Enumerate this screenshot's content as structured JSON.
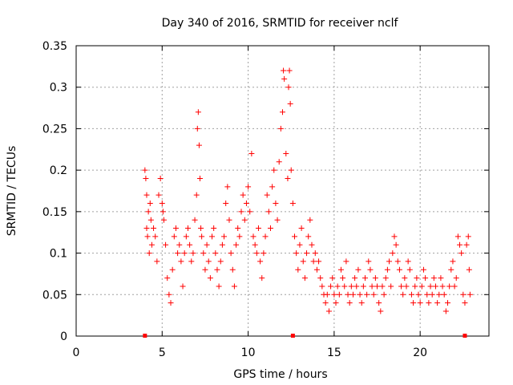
{
  "chart_data": {
    "type": "scatter",
    "title": "Day 340 of 2016, SRMTID for receiver nclf",
    "xlabel": "GPS time / hours",
    "ylabel": "SRMTID / TECUs",
    "xlim": [
      0,
      24
    ],
    "ylim": [
      0,
      0.35
    ],
    "xticks": [
      0,
      5,
      10,
      15,
      20
    ],
    "yticks": [
      0,
      0.05,
      0.1,
      0.15,
      0.2,
      0.25,
      0.3,
      0.35
    ],
    "xtick_labels": [
      "0",
      "5",
      "10",
      "15",
      "20"
    ],
    "ytick_labels": [
      "0",
      "0.05",
      "0.1",
      "0.15",
      "0.2",
      "0.25",
      "0.3",
      "0.35"
    ],
    "grid": true,
    "marker": "+",
    "color": "#ff0000",
    "series": [
      {
        "name": "SRMTID",
        "points": [
          [
            4.0,
            0.2
          ],
          [
            4.05,
            0.19
          ],
          [
            4.1,
            0.17
          ],
          [
            4.1,
            0.13
          ],
          [
            4.15,
            0.12
          ],
          [
            4.2,
            0.15
          ],
          [
            4.25,
            0.1
          ],
          [
            4.3,
            0.16
          ],
          [
            4.35,
            0.14
          ],
          [
            4.4,
            0.11
          ],
          [
            4.5,
            0.13
          ],
          [
            4.6,
            0.12
          ],
          [
            4.7,
            0.09
          ],
          [
            4.8,
            0.17
          ],
          [
            4.9,
            0.19
          ],
          [
            5.0,
            0.16
          ],
          [
            5.05,
            0.15
          ],
          [
            5.1,
            0.14
          ],
          [
            5.2,
            0.11
          ],
          [
            5.3,
            0.07
          ],
          [
            5.4,
            0.05
          ],
          [
            5.5,
            0.04
          ],
          [
            5.6,
            0.08
          ],
          [
            5.7,
            0.12
          ],
          [
            5.8,
            0.13
          ],
          [
            5.9,
            0.1
          ],
          [
            6.0,
            0.11
          ],
          [
            6.1,
            0.09
          ],
          [
            6.2,
            0.06
          ],
          [
            6.3,
            0.1
          ],
          [
            6.4,
            0.12
          ],
          [
            6.5,
            0.13
          ],
          [
            6.6,
            0.11
          ],
          [
            6.7,
            0.09
          ],
          [
            6.8,
            0.1
          ],
          [
            6.9,
            0.14
          ],
          [
            7.0,
            0.17
          ],
          [
            7.05,
            0.25
          ],
          [
            7.1,
            0.27
          ],
          [
            7.15,
            0.23
          ],
          [
            7.2,
            0.19
          ],
          [
            7.25,
            0.13
          ],
          [
            7.3,
            0.12
          ],
          [
            7.4,
            0.1
          ],
          [
            7.5,
            0.08
          ],
          [
            7.6,
            0.11
          ],
          [
            7.7,
            0.09
          ],
          [
            7.8,
            0.07
          ],
          [
            7.9,
            0.12
          ],
          [
            8.0,
            0.13
          ],
          [
            8.1,
            0.1
          ],
          [
            8.2,
            0.08
          ],
          [
            8.3,
            0.06
          ],
          [
            8.4,
            0.09
          ],
          [
            8.5,
            0.11
          ],
          [
            8.6,
            0.12
          ],
          [
            8.7,
            0.16
          ],
          [
            8.8,
            0.18
          ],
          [
            8.9,
            0.14
          ],
          [
            9.0,
            0.1
          ],
          [
            9.1,
            0.08
          ],
          [
            9.2,
            0.06
          ],
          [
            9.3,
            0.11
          ],
          [
            9.4,
            0.13
          ],
          [
            9.5,
            0.12
          ],
          [
            9.6,
            0.15
          ],
          [
            9.7,
            0.17
          ],
          [
            9.8,
            0.14
          ],
          [
            9.9,
            0.16
          ],
          [
            10.0,
            0.18
          ],
          [
            10.1,
            0.15
          ],
          [
            10.2,
            0.22
          ],
          [
            10.3,
            0.12
          ],
          [
            10.4,
            0.11
          ],
          [
            10.5,
            0.1
          ],
          [
            10.6,
            0.13
          ],
          [
            10.7,
            0.09
          ],
          [
            10.8,
            0.07
          ],
          [
            10.9,
            0.1
          ],
          [
            11.0,
            0.12
          ],
          [
            11.1,
            0.17
          ],
          [
            11.2,
            0.15
          ],
          [
            11.3,
            0.13
          ],
          [
            11.4,
            0.18
          ],
          [
            11.5,
            0.2
          ],
          [
            11.6,
            0.16
          ],
          [
            11.7,
            0.14
          ],
          [
            11.8,
            0.21
          ],
          [
            11.9,
            0.25
          ],
          [
            12.0,
            0.27
          ],
          [
            12.05,
            0.32
          ],
          [
            12.1,
            0.31
          ],
          [
            12.2,
            0.22
          ],
          [
            12.3,
            0.19
          ],
          [
            12.35,
            0.3
          ],
          [
            12.4,
            0.32
          ],
          [
            12.45,
            0.28
          ],
          [
            12.5,
            0.2
          ],
          [
            12.6,
            0.16
          ],
          [
            12.7,
            0.12
          ],
          [
            12.8,
            0.1
          ],
          [
            12.9,
            0.08
          ],
          [
            13.0,
            0.11
          ],
          [
            13.1,
            0.13
          ],
          [
            13.2,
            0.09
          ],
          [
            13.3,
            0.07
          ],
          [
            13.4,
            0.1
          ],
          [
            13.5,
            0.12
          ],
          [
            13.6,
            0.14
          ],
          [
            13.7,
            0.11
          ],
          [
            13.8,
            0.09
          ],
          [
            13.9,
            0.1
          ],
          [
            14.0,
            0.08
          ],
          [
            14.1,
            0.09
          ],
          [
            14.2,
            0.07
          ],
          [
            14.3,
            0.06
          ],
          [
            14.4,
            0.05
          ],
          [
            14.5,
            0.04
          ],
          [
            14.6,
            0.05
          ],
          [
            14.7,
            0.03
          ],
          [
            14.8,
            0.06
          ],
          [
            14.9,
            0.07
          ],
          [
            15.0,
            0.05
          ],
          [
            15.1,
            0.04
          ],
          [
            15.2,
            0.06
          ],
          [
            15.3,
            0.05
          ],
          [
            15.4,
            0.08
          ],
          [
            15.5,
            0.07
          ],
          [
            15.6,
            0.06
          ],
          [
            15.7,
            0.09
          ],
          [
            15.8,
            0.05
          ],
          [
            15.9,
            0.04
          ],
          [
            16.0,
            0.06
          ],
          [
            16.1,
            0.05
          ],
          [
            16.2,
            0.07
          ],
          [
            16.3,
            0.06
          ],
          [
            16.4,
            0.08
          ],
          [
            16.5,
            0.05
          ],
          [
            16.6,
            0.04
          ],
          [
            16.7,
            0.06
          ],
          [
            16.8,
            0.07
          ],
          [
            16.9,
            0.05
          ],
          [
            17.0,
            0.09
          ],
          [
            17.1,
            0.08
          ],
          [
            17.2,
            0.06
          ],
          [
            17.3,
            0.05
          ],
          [
            17.4,
            0.07
          ],
          [
            17.5,
            0.06
          ],
          [
            17.6,
            0.04
          ],
          [
            17.7,
            0.03
          ],
          [
            17.8,
            0.06
          ],
          [
            17.9,
            0.05
          ],
          [
            18.0,
            0.07
          ],
          [
            18.1,
            0.08
          ],
          [
            18.2,
            0.09
          ],
          [
            18.3,
            0.06
          ],
          [
            18.4,
            0.1
          ],
          [
            18.5,
            0.12
          ],
          [
            18.6,
            0.11
          ],
          [
            18.7,
            0.09
          ],
          [
            18.8,
            0.08
          ],
          [
            18.9,
            0.06
          ],
          [
            19.0,
            0.05
          ],
          [
            19.1,
            0.07
          ],
          [
            19.2,
            0.06
          ],
          [
            19.3,
            0.09
          ],
          [
            19.4,
            0.08
          ],
          [
            19.5,
            0.05
          ],
          [
            19.6,
            0.04
          ],
          [
            19.7,
            0.06
          ],
          [
            19.8,
            0.07
          ],
          [
            19.9,
            0.05
          ],
          [
            20.0,
            0.04
          ],
          [
            20.1,
            0.06
          ],
          [
            20.2,
            0.08
          ],
          [
            20.3,
            0.07
          ],
          [
            20.4,
            0.05
          ],
          [
            20.5,
            0.04
          ],
          [
            20.6,
            0.06
          ],
          [
            20.7,
            0.05
          ],
          [
            20.8,
            0.07
          ],
          [
            20.9,
            0.06
          ],
          [
            21.0,
            0.04
          ],
          [
            21.1,
            0.05
          ],
          [
            21.2,
            0.07
          ],
          [
            21.3,
            0.06
          ],
          [
            21.4,
            0.05
          ],
          [
            21.5,
            0.03
          ],
          [
            21.6,
            0.04
          ],
          [
            21.7,
            0.06
          ],
          [
            21.8,
            0.08
          ],
          [
            21.9,
            0.09
          ],
          [
            22.0,
            0.06
          ],
          [
            22.1,
            0.07
          ],
          [
            22.2,
            0.12
          ],
          [
            22.3,
            0.11
          ],
          [
            22.4,
            0.1
          ],
          [
            22.5,
            0.05
          ],
          [
            22.6,
            0.04
          ],
          [
            22.7,
            0.11
          ],
          [
            22.8,
            0.12
          ],
          [
            22.85,
            0.08
          ],
          [
            22.9,
            0.05
          ]
        ]
      }
    ],
    "zero_markers_x": [
      4.0,
      12.6,
      22.6
    ]
  }
}
